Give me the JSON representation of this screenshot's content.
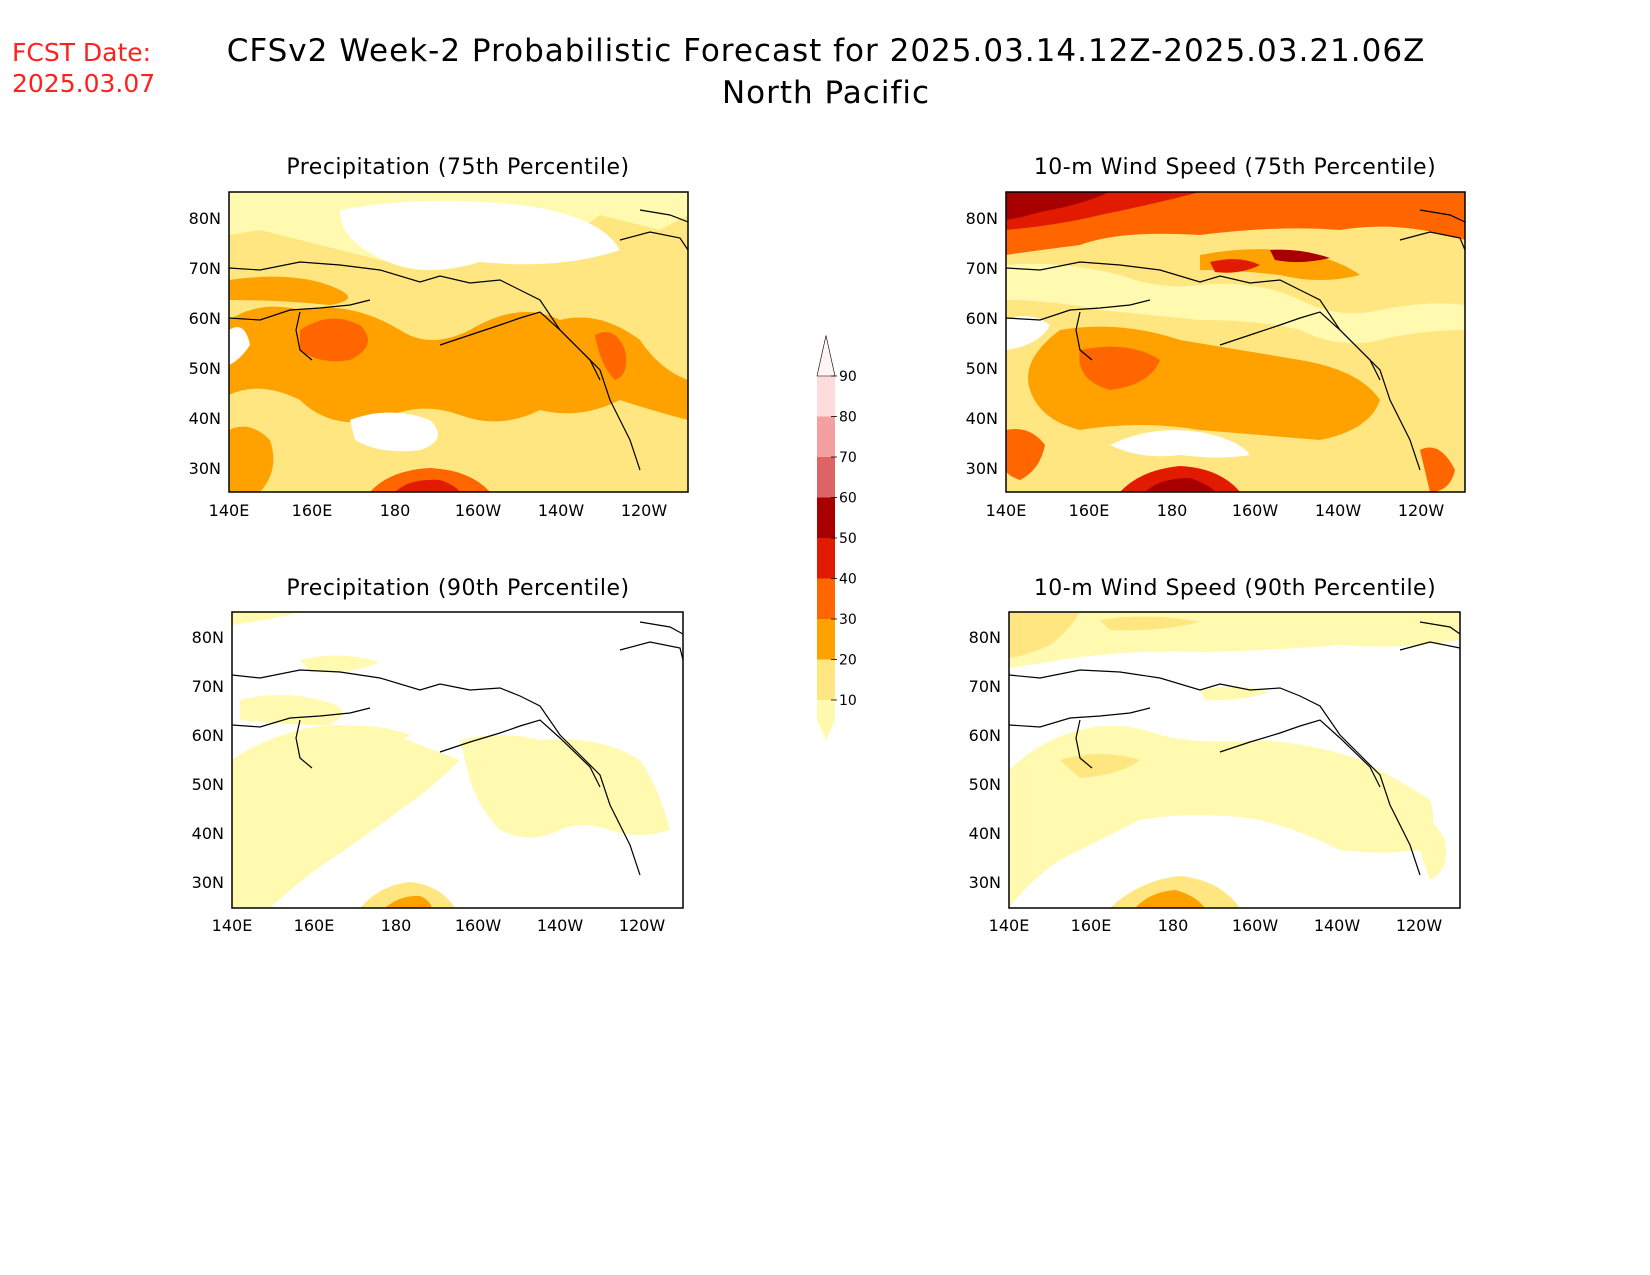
{
  "header": {
    "fcst_label": "FCST Date:",
    "fcst_date": "2025.03.07",
    "title": "CFSv2 Week-2 Probabilistic Forecast for 2025.03.14.12Z-2025.03.21.06Z",
    "region": "North Pacific"
  },
  "panels": [
    {
      "id": "precip75",
      "title": "Precipitation (75th Percentile)"
    },
    {
      "id": "wind75",
      "title": "10-m Wind Speed (75th Percentile)"
    },
    {
      "id": "precip90",
      "title": "Precipitation (90th Percentile)"
    },
    {
      "id": "wind90",
      "title": "10-m Wind Speed (90th Percentile)"
    }
  ],
  "axes": {
    "lon_ticks": [
      "140E",
      "160E",
      "180",
      "160W",
      "140W",
      "120W"
    ],
    "lat_ticks": [
      "80N",
      "70N",
      "60N",
      "50N",
      "40N",
      "30N"
    ]
  },
  "colorbar": {
    "levels": [
      "10",
      "20",
      "30",
      "40",
      "50",
      "60",
      "70",
      "80",
      "90"
    ],
    "colors": [
      "#fffab0",
      "#ffe680",
      "#ffa200",
      "#ff6600",
      "#e21b00",
      "#a80000",
      "#dc6464",
      "#f4a0a0",
      "#ffdcdc",
      "#fff4f4"
    ]
  }
}
